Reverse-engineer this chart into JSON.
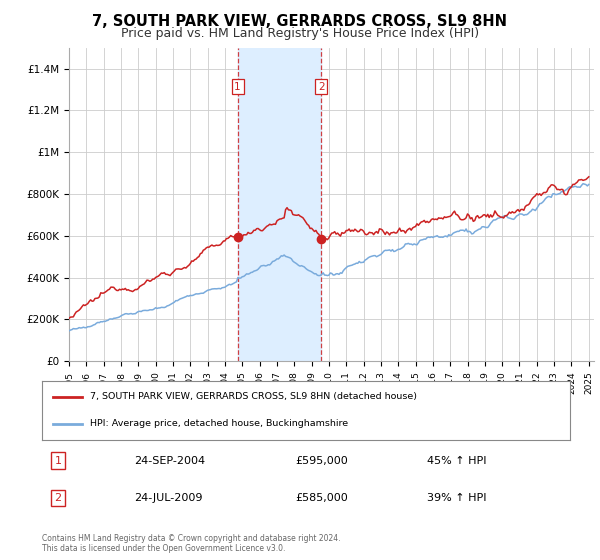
{
  "title": "7, SOUTH PARK VIEW, GERRARDS CROSS, SL9 8HN",
  "subtitle": "Price paid vs. HM Land Registry's House Price Index (HPI)",
  "title_fontsize": 10.5,
  "subtitle_fontsize": 9,
  "ylim": [
    0,
    1500000
  ],
  "yticks": [
    0,
    200000,
    400000,
    600000,
    800000,
    1000000,
    1200000,
    1400000
  ],
  "ytick_labels": [
    "£0",
    "£200K",
    "£400K",
    "£600K",
    "£800K",
    "£1M",
    "£1.2M",
    "£1.4M"
  ],
  "sale1_year": 2004.73,
  "sale1_price": 595000,
  "sale1_label": "1",
  "sale1_date": "24-SEP-2004",
  "sale1_price_str": "£595,000",
  "sale1_hpi": "45% ↑ HPI",
  "sale2_year": 2009.56,
  "sale2_price": 585000,
  "sale2_label": "2",
  "sale2_date": "24-JUL-2009",
  "sale2_price_str": "£585,000",
  "sale2_hpi": "39% ↑ HPI",
  "red_line_color": "#cc2222",
  "blue_line_color": "#7aabdc",
  "shade_color": "#ddeeff",
  "background_color": "#ffffff",
  "grid_color": "#cccccc",
  "legend_label_red": "7, SOUTH PARK VIEW, GERRARDS CROSS, SL9 8HN (detached house)",
  "legend_label_blue": "HPI: Average price, detached house, Buckinghamshire",
  "footnote": "Contains HM Land Registry data © Crown copyright and database right 2024.\nThis data is licensed under the Open Government Licence v3.0.",
  "marker_box_color": "#cc2222"
}
